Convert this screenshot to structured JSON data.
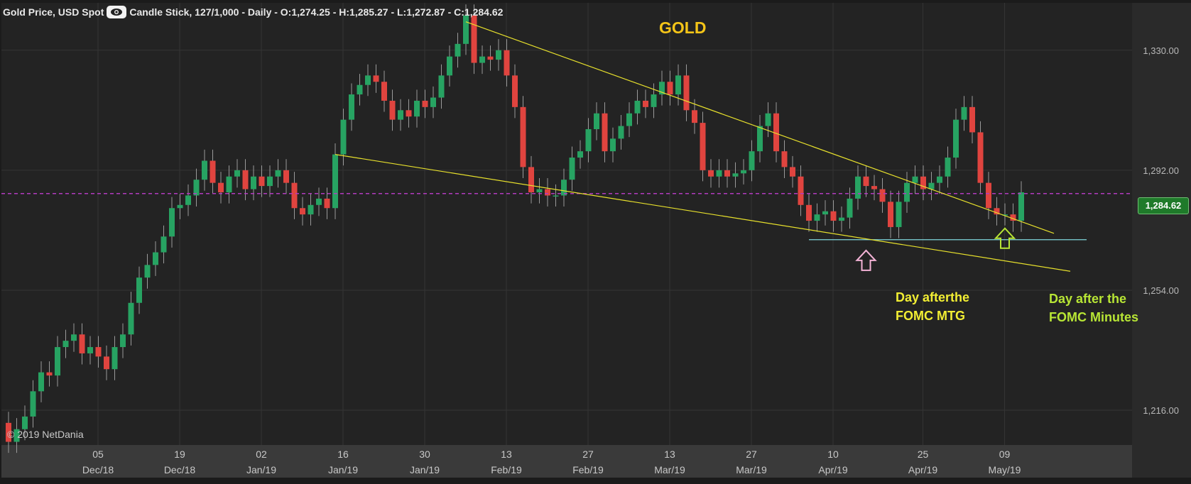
{
  "header": {
    "title": "Gold Price, USD Spot",
    "details": "Candle Stick, 127/1,000 - Daily - O:1,274.25 - H:1,285.27 - L:1,272.87 - C:1,284.62"
  },
  "copyright": "© 2019 NetDania",
  "price_tag": "1,284.62",
  "annotations": {
    "title": "GOLD",
    "fomc_mtg": [
      "Day afterthe",
      "FOMC MTG"
    ],
    "fomc_minutes": [
      "Day after the",
      "FOMC Minutes"
    ]
  },
  "colors": {
    "background": "#232323",
    "up_candle": "#27a362",
    "down_candle": "#e0443f",
    "trendline": "#e8e12c",
    "current_price_line": "#b23bbf",
    "support_line": "#7fd7dc",
    "title": "#f5c518",
    "annotation_yellow": "#f2ee33",
    "annotation_green": "#b8e635"
  },
  "chart_data": {
    "type": "candlestick",
    "title": "GOLD",
    "ylim": [
      1205,
      1345
    ],
    "yticks": [
      1216.0,
      1254.0,
      1292.0,
      1330.0
    ],
    "ytick_labels": [
      "1,216.00",
      "1,254.00",
      "1,292.00",
      "1,330.00"
    ],
    "current_price": 1284.62,
    "support_level": 1272.0,
    "x_ticks": [
      {
        "day": "05",
        "month": "Dec/18",
        "index": 4
      },
      {
        "day": "19",
        "month": "Dec/18",
        "index": 14
      },
      {
        "day": "02",
        "month": "Jan/19",
        "index": 24
      },
      {
        "day": "16",
        "month": "Jan/19",
        "index": 34
      },
      {
        "day": "30",
        "month": "Jan/19",
        "index": 44
      },
      {
        "day": "13",
        "month": "Feb/19",
        "index": 54
      },
      {
        "day": "27",
        "month": "Feb/19",
        "index": 64
      },
      {
        "day": "13",
        "month": "Mar/19",
        "index": 74
      },
      {
        "day": "27",
        "month": "Mar/19",
        "index": 84
      },
      {
        "day": "10",
        "month": "Apr/19",
        "index": 94
      },
      {
        "day": "25",
        "month": "Apr/19",
        "index": 105
      },
      {
        "day": "09",
        "month": "May/19",
        "index": 115
      }
    ],
    "trendlines": [
      {
        "from": [
          56,
          1339
        ],
        "to": [
          128,
          1272
        ],
        "color": "#e8e12c"
      },
      {
        "from": [
          40,
          1297
        ],
        "to": [
          130,
          1260
        ],
        "color": "#e8e12c"
      }
    ],
    "support_segment": {
      "from": [
        98,
        1270
      ],
      "to": [
        132,
        1270
      ]
    },
    "closes": [
      1206,
      1210,
      1214,
      1222,
      1228,
      1227,
      1236,
      1238,
      1240,
      1234,
      1236,
      1233,
      1229,
      1236,
      1240,
      1250,
      1258,
      1262,
      1266,
      1271,
      1280,
      1281,
      1284,
      1289,
      1295,
      1288,
      1285,
      1290,
      1292,
      1286,
      1290,
      1287,
      1290,
      1292,
      1288,
      1280,
      1278,
      1281,
      1283,
      1280,
      1297,
      1308,
      1316,
      1319,
      1322,
      1320,
      1314,
      1308,
      1311,
      1309,
      1314,
      1312,
      1315,
      1322,
      1328,
      1332,
      1341,
      1326,
      1328,
      1327,
      1330,
      1322,
      1312,
      1293,
      1285,
      1286,
      1284,
      1284,
      1289,
      1296,
      1298,
      1305,
      1310,
      1298,
      1302,
      1306,
      1310,
      1314,
      1312,
      1316,
      1320,
      1316,
      1322,
      1311,
      1307,
      1292,
      1290,
      1292,
      1290,
      1291,
      1292,
      1298,
      1306,
      1310,
      1298,
      1293,
      1290,
      1281,
      1276,
      1278,
      1279,
      1276,
      1277,
      1283,
      1290,
      1287,
      1286,
      1282,
      1274,
      1282,
      1288,
      1290,
      1286,
      1288,
      1290,
      1296,
      1308,
      1312,
      1304,
      1288,
      1280,
      1278,
      1278,
      1276,
      1285
    ],
    "wick": {
      "up": 3.5,
      "down": 3.5
    }
  }
}
